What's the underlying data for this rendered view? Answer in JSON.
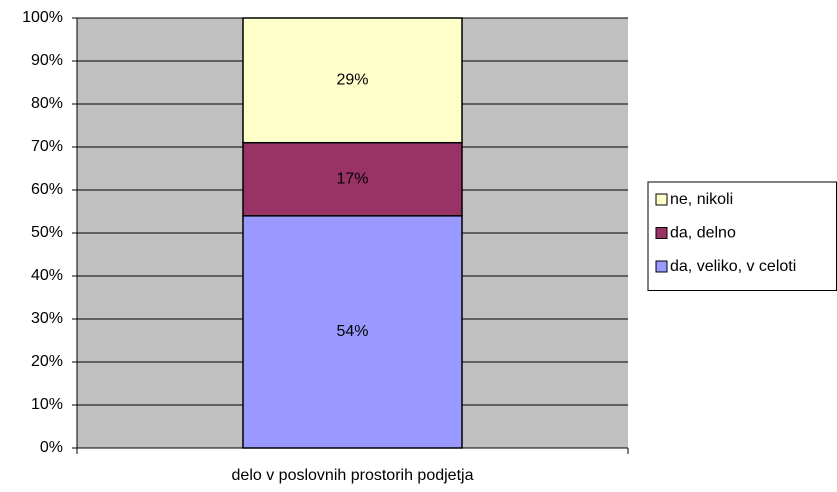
{
  "chart_data": {
    "type": "stacked_bar",
    "categories": [
      "delo v poslovnih prostorih podjetja"
    ],
    "series": [
      {
        "name": "da, veliko, v celoti",
        "color": "#9999ff",
        "values": [
          54
        ],
        "value_labels": [
          "54%"
        ]
      },
      {
        "name": "da, delno",
        "color": "#993366",
        "values": [
          17
        ],
        "value_labels": [
          "17%"
        ]
      },
      {
        "name": "ne, nikoli",
        "color": "#ffffcc",
        "values": [
          29
        ],
        "value_labels": [
          "29%"
        ]
      }
    ],
    "ylim": [
      0,
      100
    ],
    "yticks": [
      {
        "value": 0,
        "label": "0%"
      },
      {
        "value": 10,
        "label": "10%"
      },
      {
        "value": 20,
        "label": "20%"
      },
      {
        "value": 30,
        "label": "30%"
      },
      {
        "value": 40,
        "label": "40%"
      },
      {
        "value": 50,
        "label": "50%"
      },
      {
        "value": 60,
        "label": "60%"
      },
      {
        "value": 70,
        "label": "70%"
      },
      {
        "value": 80,
        "label": "80%"
      },
      {
        "value": 90,
        "label": "90%"
      },
      {
        "value": 100,
        "label": "100%"
      }
    ],
    "grid": true,
    "legend": "right",
    "plot_background": "#c0c0c0"
  }
}
